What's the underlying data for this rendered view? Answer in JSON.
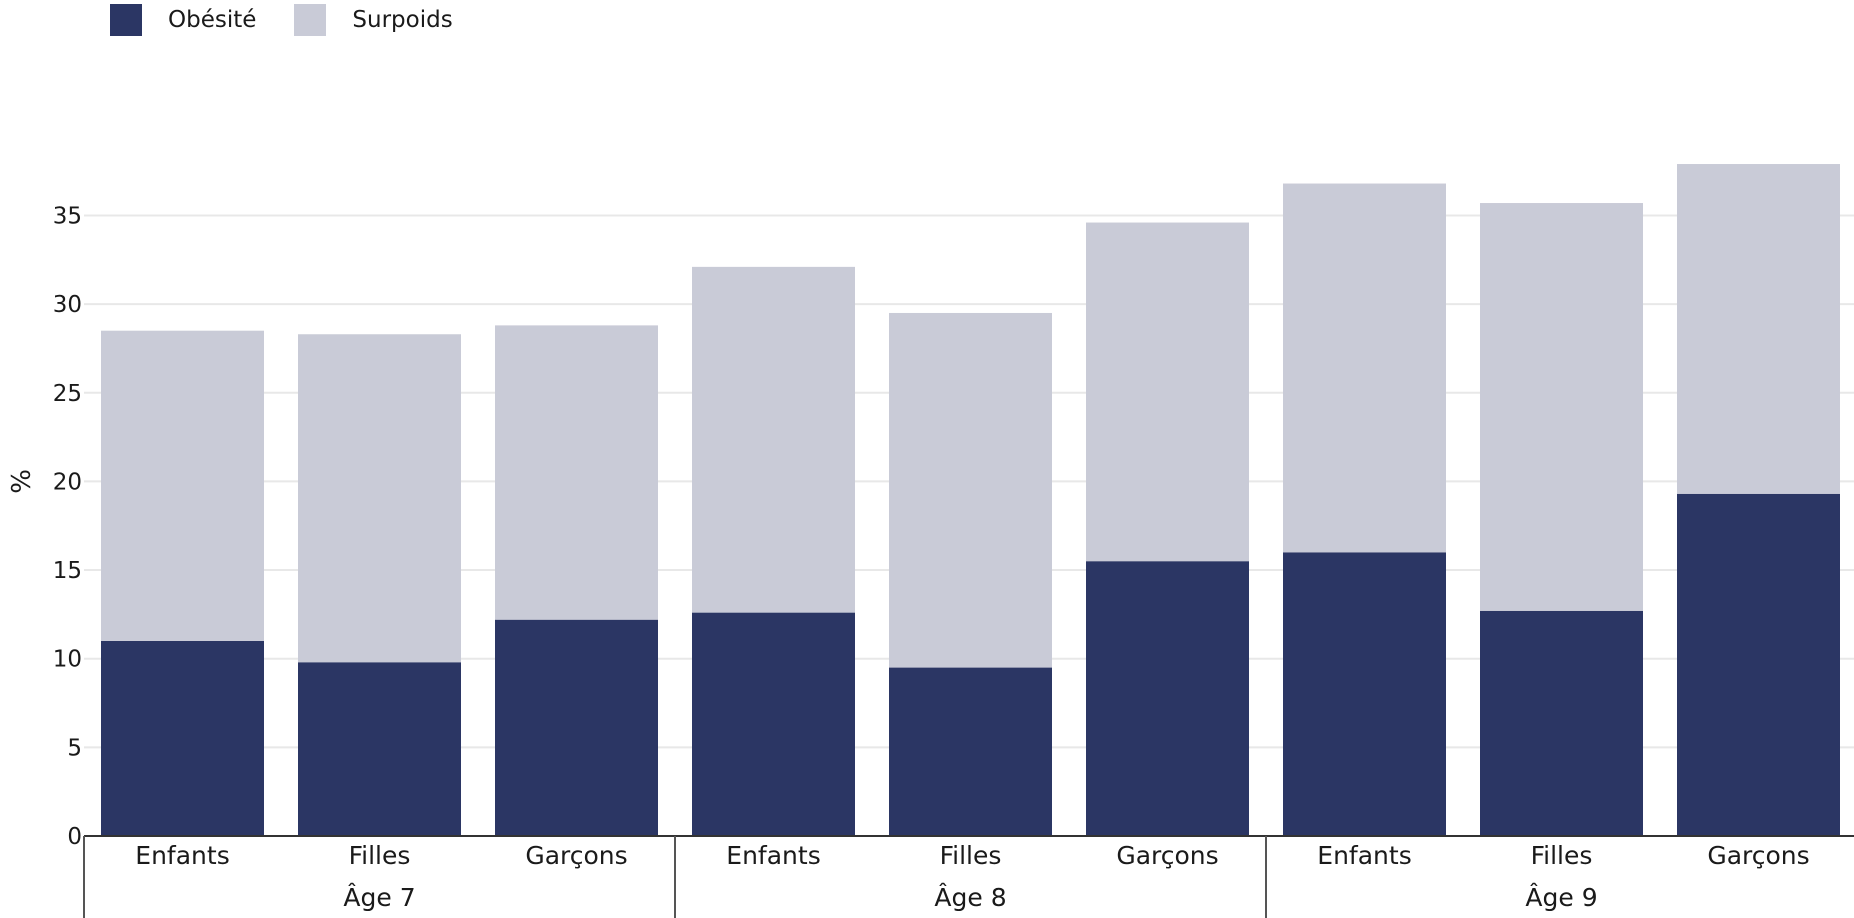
{
  "chart_data": {
    "type": "bar",
    "stacked": true,
    "ylabel": "%",
    "ylim": [
      0,
      38
    ],
    "yticks": [
      0,
      5,
      10,
      15,
      20,
      25,
      30,
      35
    ],
    "grid": true,
    "legend_position": "top-left",
    "groups": [
      {
        "label": "Âge 7",
        "categories": [
          "Enfants",
          "Filles",
          "Garçons"
        ]
      },
      {
        "label": "Âge 8",
        "categories": [
          "Enfants",
          "Filles",
          "Garçons"
        ]
      },
      {
        "label": "Âge 9",
        "categories": [
          "Enfants",
          "Filles",
          "Garçons"
        ]
      }
    ],
    "series": [
      {
        "name": "Obésité",
        "color": "#2b3664",
        "values": [
          11.0,
          9.8,
          12.2,
          12.6,
          9.5,
          15.5,
          16.0,
          12.7,
          19.3
        ]
      },
      {
        "name": "Surpoids",
        "color": "#c9cbd7",
        "values": [
          17.5,
          18.5,
          16.6,
          19.5,
          20.0,
          19.1,
          20.8,
          23.0,
          18.6
        ]
      }
    ]
  }
}
